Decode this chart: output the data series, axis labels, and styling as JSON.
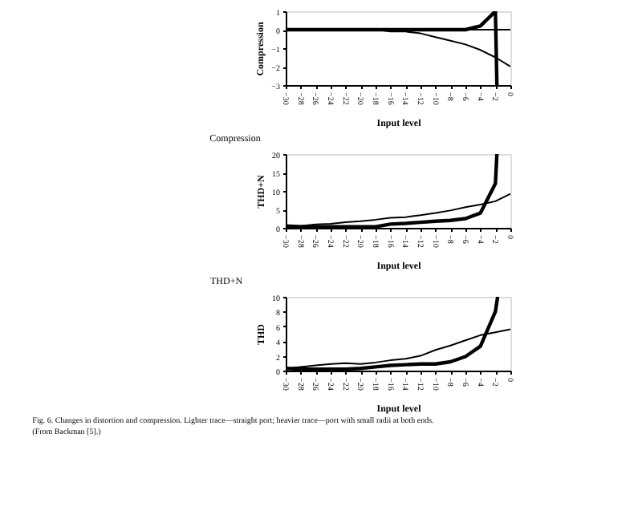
{
  "chart_data": [
    {
      "type": "line",
      "title": "Compression",
      "xlabel": "Input level",
      "ylabel": "Compression",
      "xlim": [
        -30,
        0
      ],
      "xticks": [
        -30,
        -28,
        -26,
        -24,
        -22,
        -20,
        -18,
        -16,
        -14,
        -12,
        -10,
        -8,
        -6,
        -4,
        -2,
        0
      ],
      "ylim": [
        -3,
        1
      ],
      "yticks": [
        -3,
        -2,
        -1,
        0,
        1
      ],
      "grid": false,
      "marker": "none",
      "series": [
        {
          "color": "#000000",
          "x": [
            -30,
            -28,
            -26,
            -24,
            -22,
            -20,
            -18,
            -16,
            -14,
            -12,
            -10,
            -8,
            -6,
            -4,
            -2,
            0
          ],
          "values": [
            0,
            0,
            0,
            0,
            0,
            0,
            0,
            -0.1,
            -0.1,
            -0.2,
            -0.4,
            -0.6,
            -0.8,
            -1.1,
            -1.5,
            -2
          ]
        },
        {
          "color": "#000000",
          "x": [
            -30,
            -28,
            -26,
            -24,
            -22,
            -20,
            -18,
            -16,
            -14,
            -12,
            -10,
            -8,
            -6,
            -4,
            -2,
            -1.8
          ],
          "values": [
            0,
            0,
            0,
            0,
            0,
            0,
            0,
            0,
            0,
            0,
            0,
            0,
            0,
            0.2,
            1,
            -3
          ]
        }
      ],
      "legend": false,
      "ref_lines": [
        {
          "axis": "y",
          "value": 0,
          "color": "#000000"
        }
      ]
    },
    {
      "type": "line",
      "title": "THD+N",
      "xlabel": "Input level",
      "ylabel": "THD+N",
      "xlim": [
        -30,
        0
      ],
      "xticks": [
        -30,
        -28,
        -26,
        -24,
        -22,
        -20,
        -18,
        -16,
        -14,
        -12,
        -10,
        -8,
        -6,
        -4,
        -2,
        0
      ],
      "ylim": [
        0,
        20
      ],
      "yticks": [
        0,
        5,
        10,
        15,
        20
      ],
      "grid": false,
      "marker": "none",
      "series": [
        {
          "color": "#000000",
          "x": [
            -30,
            -28,
            -26,
            -24,
            -22,
            -20,
            -18,
            -16,
            -14,
            -12,
            -10,
            -8,
            -6,
            -4,
            -2,
            0
          ],
          "values": [
            0.5,
            0.5,
            0.9,
            1.1,
            1.5,
            1.8,
            2.2,
            2.7,
            2.9,
            3.4,
            4.0,
            4.7,
            5.6,
            6.3,
            7.2,
            9.2
          ]
        },
        {
          "color": "#000000",
          "x": [
            -30,
            -28,
            -26,
            -24,
            -22,
            -20,
            -18,
            -16,
            -14,
            -12,
            -10,
            -8,
            -6,
            -4,
            -2,
            -1.8
          ],
          "values": [
            0.5,
            0.3,
            0.3,
            0.3,
            0.3,
            0.3,
            0.3,
            1.0,
            1.2,
            1.5,
            1.8,
            2.0,
            2.5,
            4.0,
            12,
            20
          ]
        }
      ],
      "legend": false
    },
    {
      "type": "line",
      "xlabel": "Input level",
      "ylabel": "THD",
      "xlim": [
        -30,
        0
      ],
      "xticks": [
        -30,
        -28,
        -26,
        -24,
        -22,
        -20,
        -18,
        -16,
        -14,
        -12,
        -10,
        -8,
        -6,
        -4,
        -2,
        0
      ],
      "ylim": [
        0,
        10
      ],
      "yticks": [
        0,
        2,
        4,
        6,
        8,
        10
      ],
      "grid": false,
      "marker": "none",
      "annotations": [
        "Fig. 6. Changes in distortion and compression. Lighter trace—straight port; heavier trace—port with small radii at both ends. (From Backman [5].)"
      ],
      "series": [
        {
          "color": "#000000",
          "x": [
            -30,
            -28,
            -26,
            -24,
            -22,
            -20,
            -18,
            -16,
            -14,
            -12,
            -10,
            -8,
            -6,
            -4,
            -2,
            0
          ],
          "values": [
            0.3,
            0.5,
            0.7,
            0.9,
            1.0,
            0.9,
            1.1,
            1.4,
            1.6,
            2.0,
            2.8,
            3.4,
            4.1,
            4.8,
            5.2,
            5.6
          ]
        },
        {
          "color": "#000000",
          "x": [
            -30,
            -28,
            -26,
            -24,
            -22,
            -20,
            -18,
            -16,
            -14,
            -12,
            -10,
            -8,
            -6,
            -4,
            -2,
            -1.7
          ],
          "values": [
            0.3,
            0.2,
            0.2,
            0.2,
            0.2,
            0.3,
            0.5,
            0.7,
            0.8,
            0.9,
            0.9,
            1.2,
            1.9,
            3.3,
            8,
            10
          ]
        }
      ],
      "legend": false
    }
  ]
}
